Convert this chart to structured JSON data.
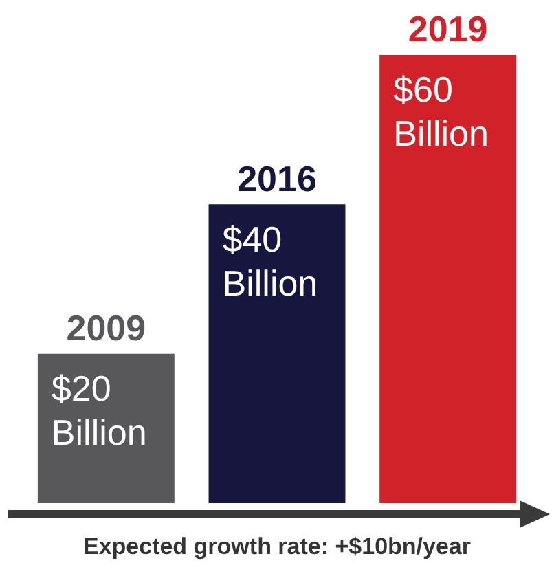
{
  "chart_data": {
    "type": "bar",
    "xlabel": "Expected growth rate: +$10bn/year",
    "categories": [
      "2009",
      "2016",
      "2019"
    ],
    "values": [
      20,
      40,
      60
    ],
    "colors": [
      "#58585a",
      "#16163f",
      "#d12229"
    ],
    "value_labels": [
      "$20 Billion",
      "$40 Billion",
      "$60 Billion"
    ],
    "legend": false
  }
}
